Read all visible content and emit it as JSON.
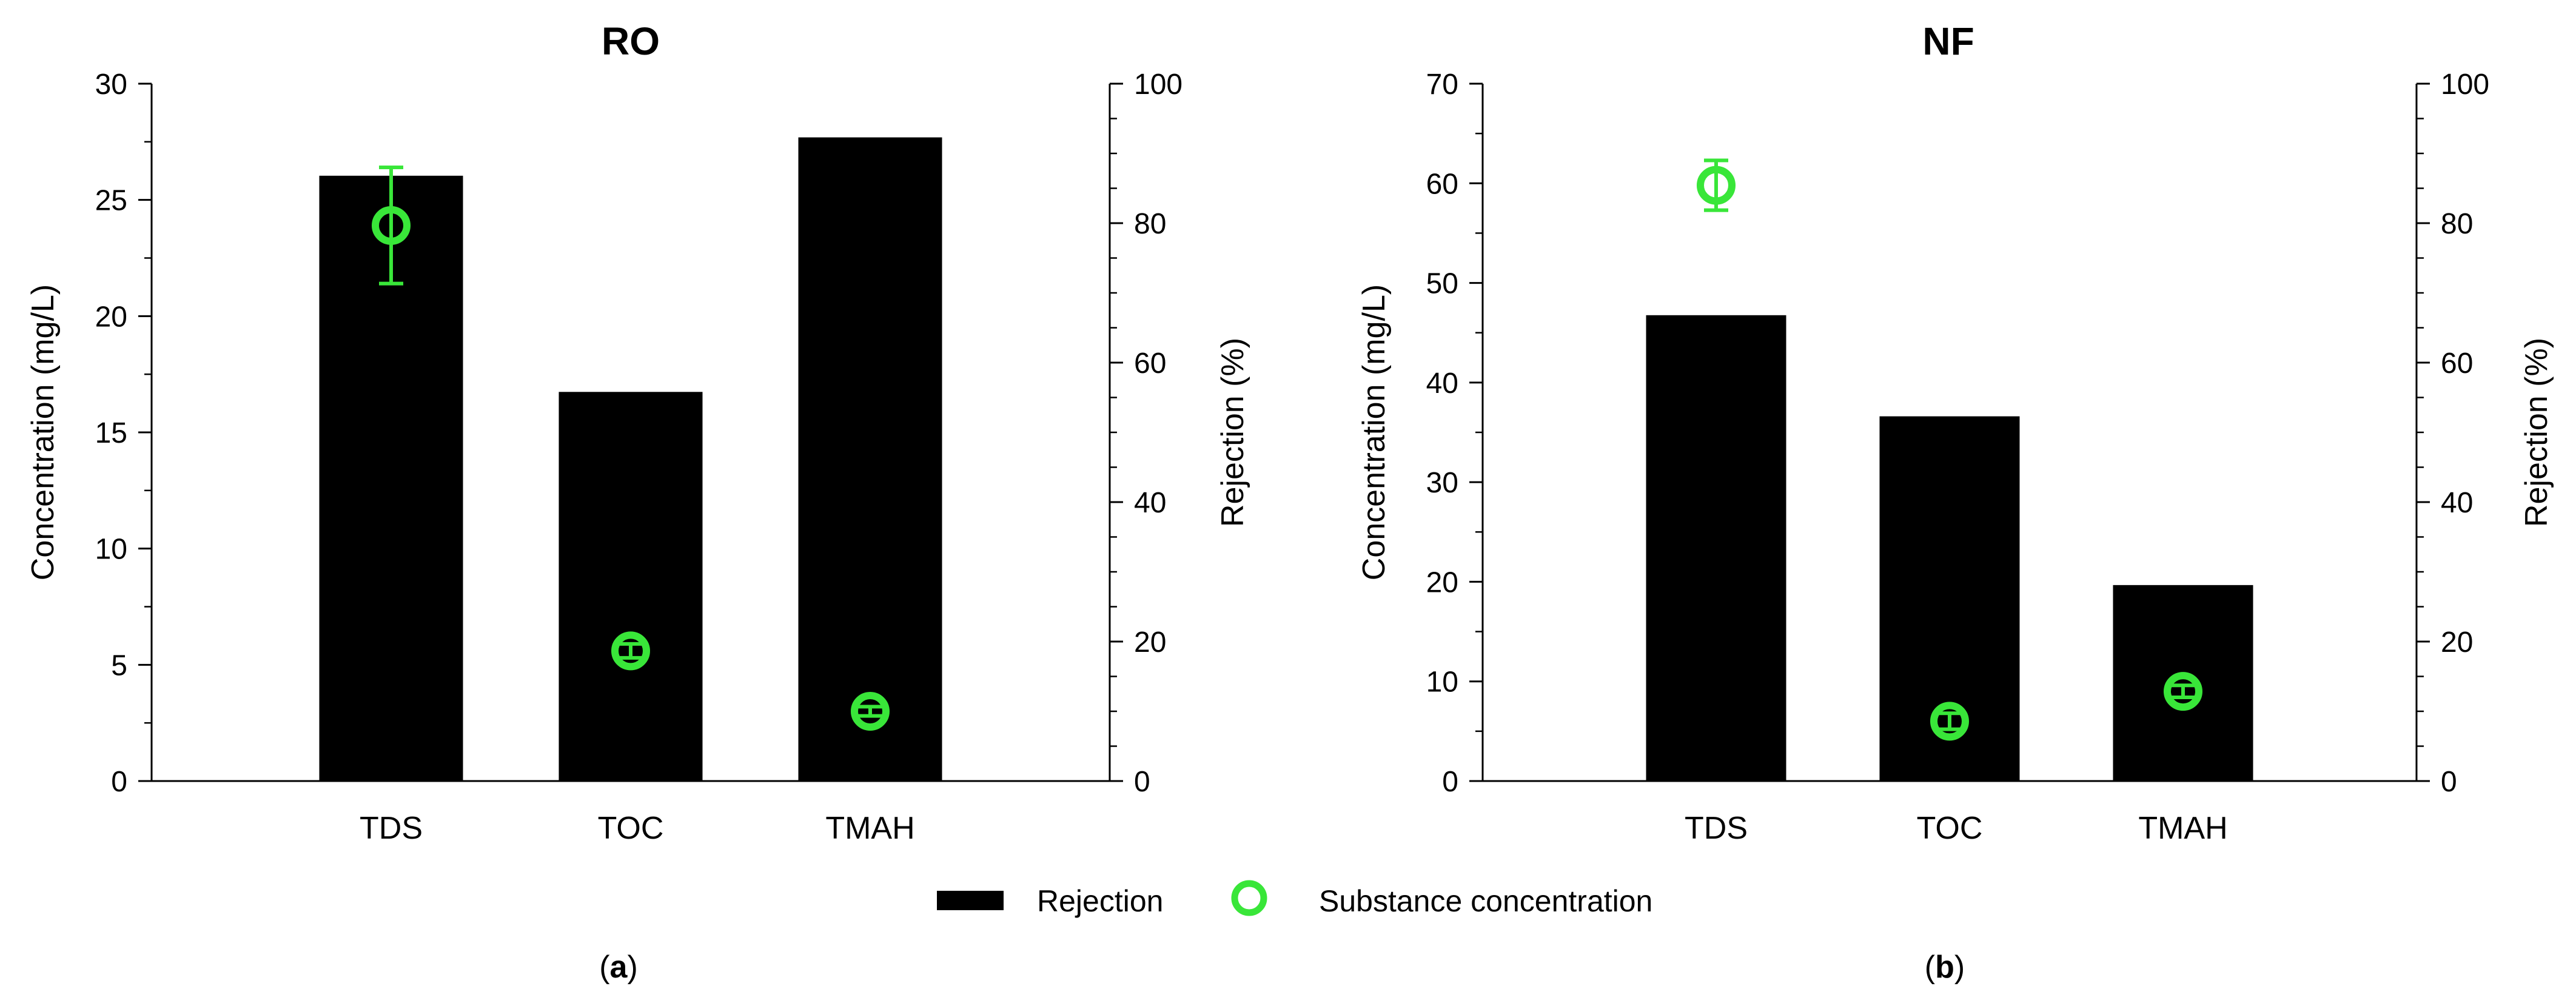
{
  "colors": {
    "bar": "#000000",
    "marker": "#39e639",
    "axis": "#000000"
  },
  "legend": {
    "items": [
      {
        "label": "Rejection",
        "kind": "bar"
      },
      {
        "label": "Substance concentration",
        "kind": "marker"
      }
    ]
  },
  "chart_data": [
    {
      "type": "bar",
      "title": "RO",
      "panel_label": "(a)",
      "panel_letter": "a",
      "categories": [
        "TDS",
        "TOC",
        "TMAH"
      ],
      "y_left": {
        "label": "Concentration (mg/L)",
        "lim": [
          0,
          30
        ],
        "ticks": [
          0,
          5,
          10,
          15,
          20,
          25,
          30
        ]
      },
      "y_right": {
        "label": "Rejection (%)",
        "lim": [
          0,
          100
        ],
        "ticks": [
          0,
          20,
          40,
          60,
          80,
          100
        ]
      },
      "series": [
        {
          "name": "Rejection",
          "axis": "right",
          "kind": "bar",
          "values": [
            86.8,
            55.8,
            92.3
          ]
        },
        {
          "name": "Substance concentration",
          "axis": "left",
          "kind": "marker",
          "values": [
            23.9,
            5.6,
            3.0
          ],
          "errors": [
            2.5,
            0.3,
            0.2
          ]
        }
      ]
    },
    {
      "type": "bar",
      "title": "NF",
      "panel_label": "(b)",
      "panel_letter": "b",
      "categories": [
        "TDS",
        "TOC",
        "TMAH"
      ],
      "y_left": {
        "label": "Concentration (mg/L)",
        "lim": [
          0,
          70
        ],
        "ticks": [
          0,
          10,
          20,
          30,
          40,
          50,
          60,
          70
        ]
      },
      "y_right": {
        "label": "Rejection (%)",
        "lim": [
          0,
          100
        ],
        "ticks": [
          0,
          20,
          40,
          60,
          80,
          100
        ]
      },
      "series": [
        {
          "name": "Rejection",
          "axis": "right",
          "kind": "bar",
          "values": [
            66.8,
            52.3,
            28.1
          ]
        },
        {
          "name": "Substance concentration",
          "axis": "left",
          "kind": "marker",
          "values": [
            59.8,
            6.0,
            9.0
          ],
          "errors": [
            2.5,
            0.8,
            0.6
          ]
        }
      ]
    }
  ]
}
